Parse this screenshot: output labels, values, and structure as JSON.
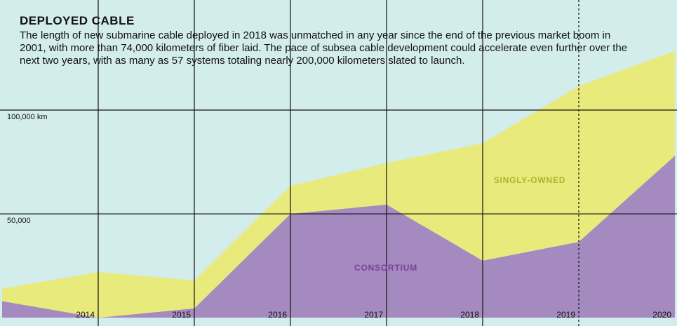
{
  "chart_data": {
    "type": "stacked_area",
    "title": "DEPLOYED CABLE",
    "subtitle": "The length of new submarine cable deployed in 2018 was unmatched in any year since the end of the previous market boom in 2001, with more than 74,000 kilometers of fiber laid. The pace of subsea cable development could accelerate even further over the next two years, with as many as 57 systems totaling nearly 200,000 kilometers slated to launch.",
    "categories": [
      null,
      "2014",
      "2015",
      "2016",
      "2017",
      "2018",
      "2019",
      "2020"
    ],
    "series": [
      {
        "name": "CONSORTIUM",
        "color": "#a58abf",
        "label_color": "#7b3fa0",
        "values": [
          8000,
          0,
          4500,
          50000,
          54500,
          27500,
          36500,
          78000
        ]
      },
      {
        "name": "SINGLY-OWNED",
        "color": "#e8ea7c",
        "label_color": "#b2b32a",
        "values": [
          6000,
          22000,
          13500,
          13500,
          20000,
          56500,
          75000,
          50500
        ]
      }
    ],
    "ylim": [
      -4000,
      153000
    ],
    "yticks": [
      {
        "value": 50000,
        "label": "50,000"
      },
      {
        "value": 100000,
        "label": "100,000 km"
      }
    ],
    "grid": true,
    "background": "#d3ecec"
  }
}
